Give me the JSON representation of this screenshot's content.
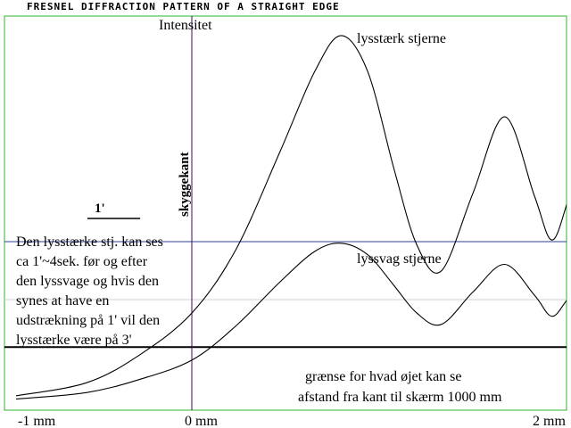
{
  "chart_data": {
    "type": "line",
    "title": "FRESNEL DIFFRACTION PATTERN OF A STRAIGHT EDGE",
    "ylabel": "Intensitet",
    "edge_label": "skyggekant",
    "x_ticks": [
      "-1 mm",
      "0 mm",
      "2 mm"
    ],
    "x_tick_values": [
      -1,
      0,
      2
    ],
    "xlim": [
      -1,
      2.2
    ],
    "ylim": [
      0,
      2.3
    ],
    "scale_bar_label": "1'",
    "scale_bar_length": 0.5,
    "geometric_shadow_level": 1.0,
    "detection_threshold": 0.35,
    "threshold_label": "grænse for hvad øjet kan se",
    "distance_label": "afstand fra kant til skærm 1000 mm",
    "note_lines": [
      "Den lysstærke stj. kan ses",
      "ca 1'~4sek. før og efter",
      "den lyssvage og hvis den",
      " synes at have en",
      "udstrækning på 1' vil den",
      " lysstærke være på 3'"
    ],
    "series": [
      {
        "name": "lysstærk stjerne",
        "peak_x": 0.85,
        "points": [
          [
            -1,
            0.05
          ],
          [
            -0.6,
            0.13
          ],
          [
            -0.3,
            0.3
          ],
          [
            0,
            0.56
          ],
          [
            0.25,
            0.95
          ],
          [
            0.5,
            1.55
          ],
          [
            0.7,
            2.05
          ],
          [
            0.85,
            2.27
          ],
          [
            1.0,
            2.05
          ],
          [
            1.15,
            1.45
          ],
          [
            1.28,
            0.98
          ],
          [
            1.42,
            0.82
          ],
          [
            1.6,
            1.3
          ],
          [
            1.78,
            1.77
          ],
          [
            1.95,
            1.28
          ],
          [
            2.05,
            1.01
          ],
          [
            2.15,
            1.28
          ],
          [
            2.28,
            1.64
          ],
          [
            2.35,
            1.47
          ]
        ]
      },
      {
        "name": "lyssvag stjerne",
        "peak_x": 0.85,
        "points": [
          [
            -1,
            0.03
          ],
          [
            -0.6,
            0.07
          ],
          [
            -0.3,
            0.15
          ],
          [
            0,
            0.27
          ],
          [
            0.25,
            0.48
          ],
          [
            0.5,
            0.75
          ],
          [
            0.7,
            0.94
          ],
          [
            0.85,
            0.99
          ],
          [
            1.0,
            0.92
          ],
          [
            1.15,
            0.73
          ],
          [
            1.28,
            0.56
          ],
          [
            1.42,
            0.49
          ],
          [
            1.6,
            0.69
          ],
          [
            1.78,
            0.86
          ],
          [
            1.95,
            0.67
          ],
          [
            2.05,
            0.54
          ],
          [
            2.15,
            0.66
          ],
          [
            2.28,
            0.78
          ],
          [
            2.35,
            0.72
          ]
        ]
      }
    ]
  }
}
